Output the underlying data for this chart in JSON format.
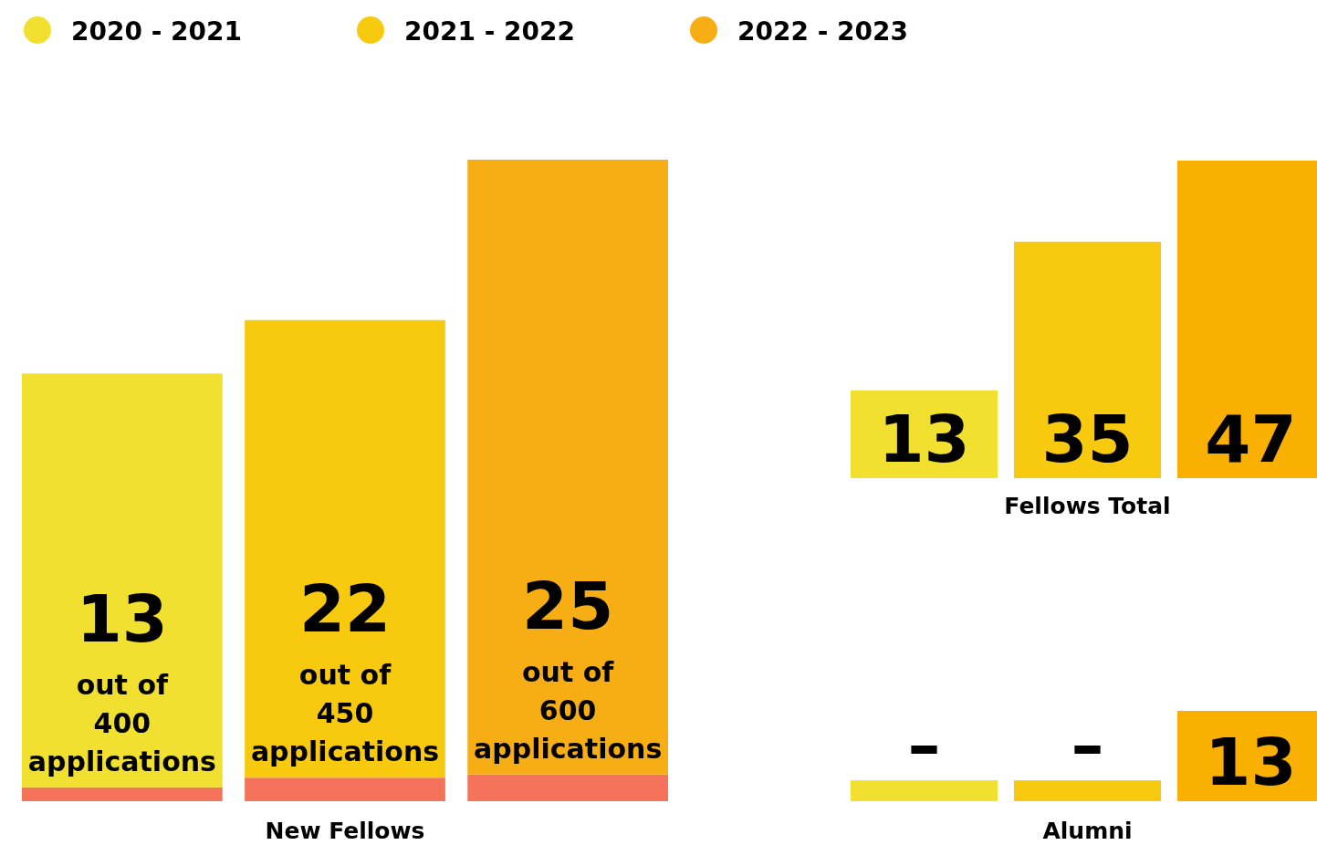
{
  "chart_data": [
    {
      "type": "bar",
      "stacked": true,
      "xlabel": "New Fellows",
      "categories": [
        null,
        null,
        null
      ],
      "legend": "top",
      "series": [
        {
          "color": "#f4735a",
          "values": [
            13,
            22,
            25
          ],
          "value_labels": [
            "13",
            "22",
            "25"
          ]
        },
        {
          "name": "2020 - 2021",
          "color": "#f1e02f",
          "values": [
            387,
            null,
            null
          ],
          "value_labels": [
            "out of 400 applications",
            null,
            null
          ]
        },
        {
          "name": "2021 - 2022",
          "color": "#f7c90f",
          "values": [
            null,
            428,
            null
          ],
          "value_labels": [
            null,
            "out of 450 applications",
            null
          ]
        },
        {
          "name": "2022 - 2023",
          "color": "#f7ae14",
          "values": [
            null,
            null,
            575
          ],
          "value_labels": [
            null,
            null,
            "out of 600 applications"
          ]
        }
      ]
    },
    {
      "type": "bar",
      "xlabel": "Fellows Total",
      "categories": [
        null,
        null,
        null
      ],
      "data_labels": true,
      "colors": [
        "#f1e02f",
        "#f7c90f",
        "#f9b000"
      ],
      "values": [
        13,
        35,
        47
      ]
    },
    {
      "type": "bar",
      "xlabel": "Alumni",
      "categories": [
        null,
        null,
        null
      ],
      "colors": [
        "#f1e02f",
        "#f7c90f",
        "#f9b000"
      ],
      "values": [
        3,
        3,
        13
      ],
      "value_labels": [
        "–",
        "–",
        "13"
      ]
    }
  ]
}
